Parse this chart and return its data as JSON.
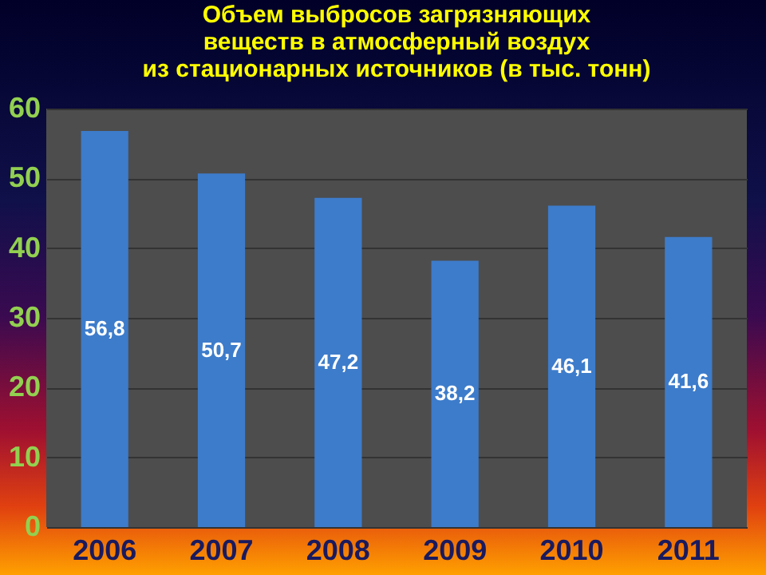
{
  "chart_data": {
    "type": "bar",
    "title": "Объем выбросов загрязняющих\nвеществ в атмосферный воздух\nиз стационарных источников (в тыс. тонн)",
    "categories": [
      "2006",
      "2007",
      "2008",
      "2009",
      "2010",
      "2011"
    ],
    "values": [
      56.8,
      50.7,
      47.2,
      38.2,
      46.1,
      41.6
    ],
    "color": "#3d7ccb",
    "value_labels": [
      "56,8",
      "50,7",
      "47,2",
      "38,2",
      "46,1",
      "41,6"
    ],
    "ylim": [
      0,
      60
    ],
    "yticks": [
      0,
      10,
      20,
      30,
      40,
      50,
      60
    ],
    "grid": "y"
  }
}
